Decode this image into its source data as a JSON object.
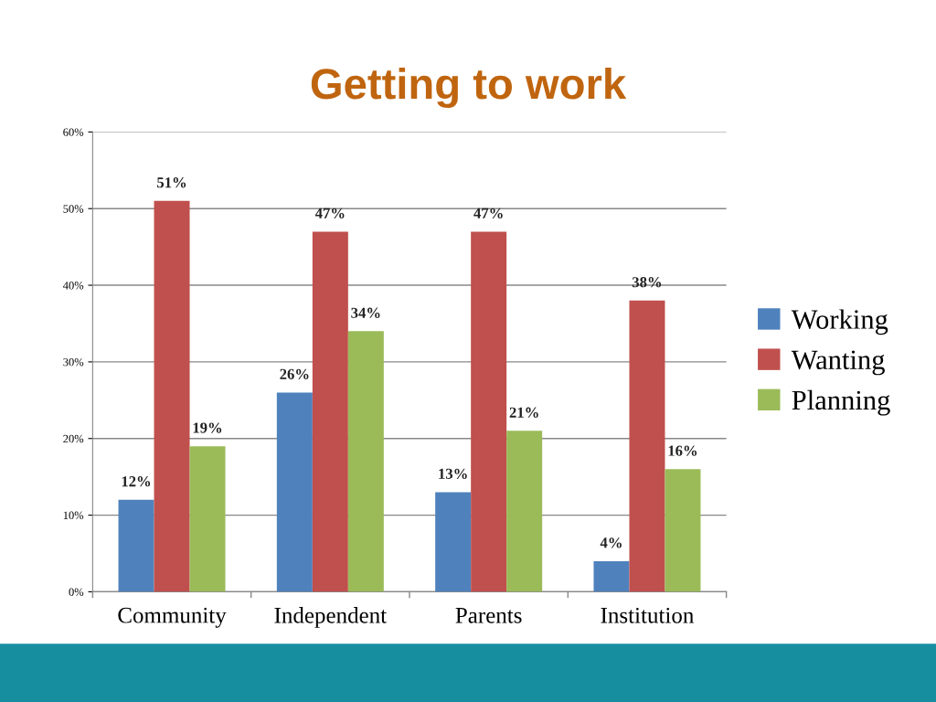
{
  "chart_data": {
    "type": "bar",
    "title": "Getting to work",
    "categories": [
      "Community",
      "Independent",
      "Parents",
      "Institution"
    ],
    "series": [
      {
        "name": "Working",
        "color": "#4f81bd",
        "values": [
          12,
          26,
          13,
          4
        ],
        "value_labels": [
          "12%",
          "26%",
          "13%",
          "4%"
        ]
      },
      {
        "name": "Wanting",
        "color": "#c0504d",
        "values": [
          51,
          47,
          47,
          38
        ],
        "value_labels": [
          "51%",
          "47%",
          "47%",
          "38%"
        ]
      },
      {
        "name": "Planning",
        "color": "#9bbb59",
        "values": [
          19,
          34,
          21,
          16
        ],
        "value_labels": [
          "19%",
          "34%",
          "21%",
          "16%"
        ]
      }
    ],
    "ylim": [
      0,
      60
    ],
    "yticks": [
      {
        "value": 0,
        "label": "0%"
      },
      {
        "value": 10,
        "label": "10%"
      },
      {
        "value": 20,
        "label": "20%"
      },
      {
        "value": 30,
        "label": "30%"
      },
      {
        "value": 40,
        "label": "40%"
      },
      {
        "value": 50,
        "label": "50%"
      },
      {
        "value": 60,
        "label": "60%"
      }
    ],
    "grid": "y",
    "legend": "right"
  }
}
